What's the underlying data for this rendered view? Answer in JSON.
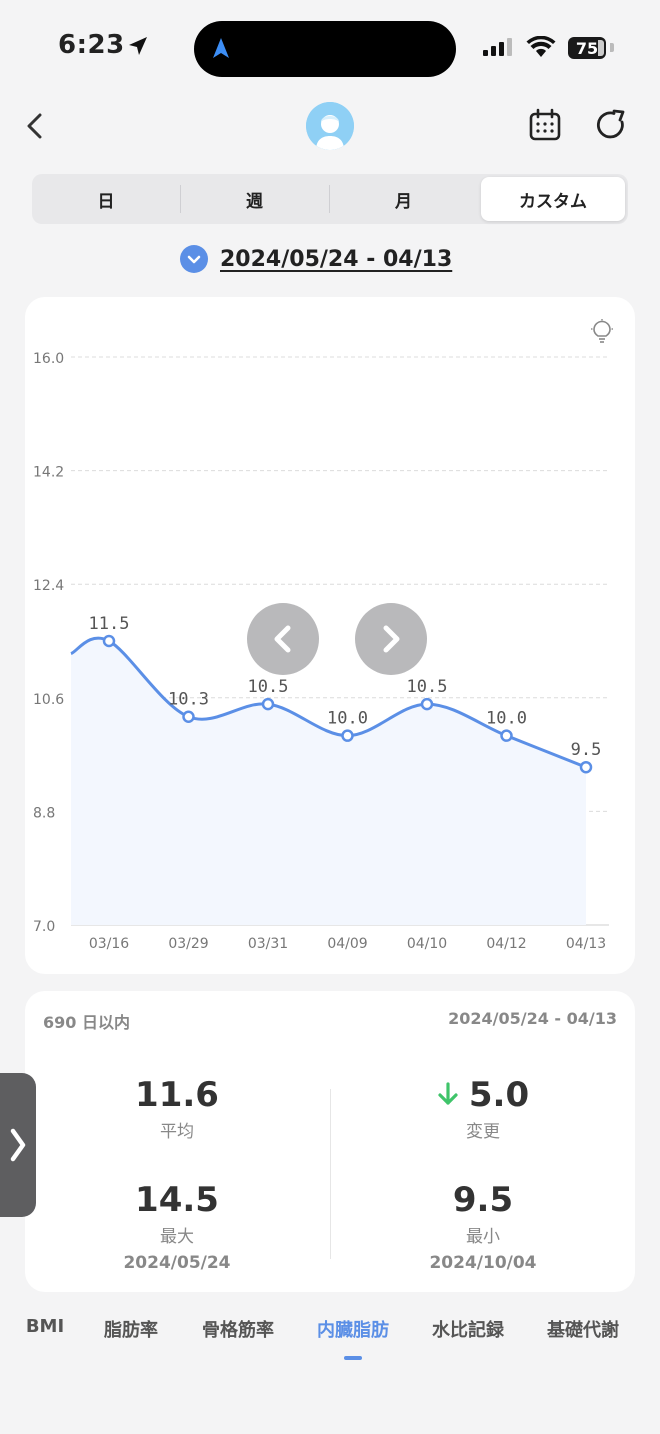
{
  "status": {
    "time": "6:23",
    "battery": "75"
  },
  "segments": [
    "日",
    "週",
    "月",
    "カスタム"
  ],
  "active_segment": 3,
  "range_label": "2024/05/24 - 04/13",
  "chart_data": {
    "type": "area",
    "categories": [
      "03/16",
      "03/29",
      "03/31",
      "04/09",
      "04/10",
      "04/12",
      "04/13"
    ],
    "series": [
      {
        "values": [
          11.5,
          10.3,
          10.5,
          10.0,
          10.5,
          10.0,
          9.5
        ]
      }
    ],
    "data_labels": [
      "11.5",
      "10.3",
      "10.5",
      "10.0",
      "10.5",
      "10.0",
      "9.5"
    ],
    "leading_value": 11.3,
    "y_ticks": [
      "16.0",
      "14.2",
      "12.4",
      "10.6",
      "8.8",
      "7.0"
    ],
    "ylim": [
      7.0,
      16.0
    ],
    "grid": true,
    "colors": {
      "line": "#5b8fe6",
      "fill": "#f3f7fe",
      "grid": "#dcdcdc"
    }
  },
  "stats": {
    "days": "690 日以内",
    "range": "2024/05/24 - 04/13",
    "average": {
      "value": "11.6",
      "label": "平均"
    },
    "change": {
      "value": "5.0",
      "label": "変更",
      "direction": "down"
    },
    "max": {
      "value": "14.5",
      "label": "最大",
      "date": "2024/05/24"
    },
    "min": {
      "value": "9.5",
      "label": "最小",
      "date": "2024/10/04"
    }
  },
  "tabs": [
    "BMI",
    "脂肪率",
    "骨格筋率",
    "内臓脂肪",
    "水比記録",
    "基礎代謝"
  ],
  "active_tab": 3,
  "accent": "#5b8fe6"
}
